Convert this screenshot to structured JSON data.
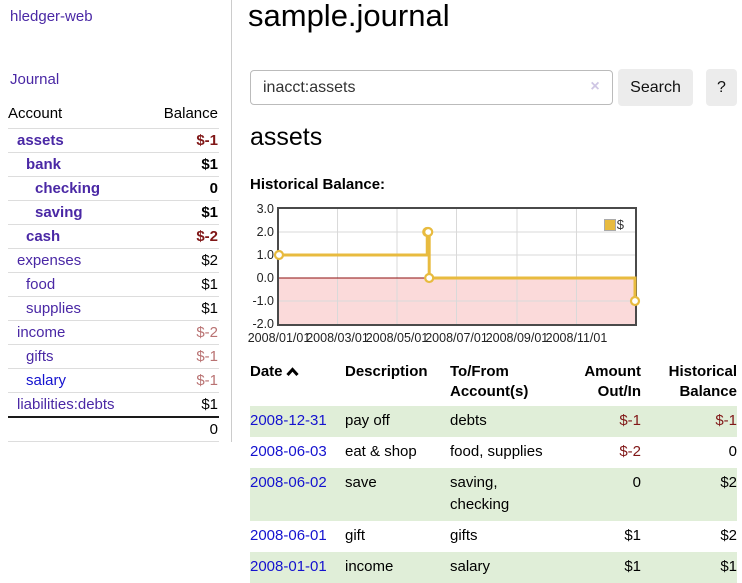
{
  "app": {
    "brand": "hledger-web"
  },
  "sidebar": {
    "journal_link": "Journal",
    "headers": {
      "account": "Account",
      "balance": "Balance"
    },
    "accounts": [
      {
        "name": "assets",
        "balance": "$-1",
        "depth": 1,
        "bold": true,
        "balance_style": "neg-dark",
        "link_style": "purple"
      },
      {
        "name": "bank",
        "balance": "$1",
        "depth": 2,
        "bold": true,
        "balance_style": "plain",
        "link_style": "purple"
      },
      {
        "name": "checking",
        "balance": "0",
        "depth": 3,
        "bold": true,
        "balance_style": "plain",
        "link_style": "purple"
      },
      {
        "name": "saving",
        "balance": "$1",
        "depth": 3,
        "bold": true,
        "balance_style": "plain",
        "link_style": "purple"
      },
      {
        "name": "cash",
        "balance": "$-2",
        "depth": 2,
        "bold": true,
        "balance_style": "neg-dark",
        "link_style": "purple"
      },
      {
        "name": "expenses",
        "balance": "$2",
        "depth": 1,
        "bold": false,
        "balance_style": "plain",
        "link_style": "purple"
      },
      {
        "name": "food",
        "balance": "$1",
        "depth": 2,
        "bold": false,
        "balance_style": "plain",
        "link_style": "purple"
      },
      {
        "name": "supplies",
        "balance": "$1",
        "depth": 2,
        "bold": false,
        "balance_style": "plain",
        "link_style": "purple"
      },
      {
        "name": "income",
        "balance": "$-2",
        "depth": 1,
        "bold": false,
        "balance_style": "neg-faded",
        "link_style": "purple"
      },
      {
        "name": "gifts",
        "balance": "$-1",
        "depth": 2,
        "bold": false,
        "balance_style": "neg-faded",
        "link_style": "purple"
      },
      {
        "name": "salary",
        "balance": "$-1",
        "depth": 2,
        "bold": false,
        "balance_style": "neg-faded",
        "link_style": "blue"
      },
      {
        "name": "liabilities:debts",
        "balance": "$1",
        "depth": 1,
        "bold": false,
        "balance_style": "plain",
        "link_style": "purple"
      }
    ],
    "total": "0"
  },
  "main": {
    "title": "sample.journal",
    "search": {
      "value": "inacct:assets",
      "clear_icon": "×",
      "button_label": "Search",
      "help_label": "?"
    },
    "account_heading": "assets",
    "chart_label": "Historical Balance:"
  },
  "chart_data": {
    "type": "line",
    "step": true,
    "title": "Historical Balance:",
    "series": [
      {
        "name": "$",
        "points": [
          {
            "x": "2008-01-01",
            "y": 1
          },
          {
            "x": "2008-06-01",
            "y": 2
          },
          {
            "x": "2008-06-02",
            "y": 2
          },
          {
            "x": "2008-06-03",
            "y": 0
          },
          {
            "x": "2008-12-31",
            "y": -1
          }
        ]
      }
    ],
    "xdomain": [
      "2008-01-01",
      "2008-12-31"
    ],
    "ylim": [
      -2,
      3
    ],
    "yticks": [
      "3.0",
      "2.0",
      "1.0",
      "0.0",
      "-1.0",
      "-2.0"
    ],
    "xticks": [
      {
        "label": "2008/01/01",
        "date": "2008-01-01"
      },
      {
        "label": "2008/03/01",
        "date": "2008-03-01"
      },
      {
        "label": "2008/05/01",
        "date": "2008-05-01"
      },
      {
        "label": "2008/07/01",
        "date": "2008-07-01"
      },
      {
        "label": "2008/09/01",
        "date": "2008-09-01"
      },
      {
        "label": "2008/11/01",
        "date": "2008-11-01"
      }
    ],
    "legend": {
      "label": "$",
      "position": "top-right"
    },
    "grid": true,
    "colors": {
      "line": "#e8bb3f",
      "marker_fill": "#ffffff",
      "negative_bg": "#fbdada",
      "zero_line": "#8c0d0d",
      "grid": "#d9d9d9",
      "border": "#4a4a4a"
    }
  },
  "register": {
    "headers": {
      "date": "Date",
      "description": "Description",
      "accounts": "To/From Account(s)",
      "amount": "Amount Out/In",
      "balance": "Historical Balance"
    },
    "rows": [
      {
        "date": "2008-12-31",
        "description": "pay off",
        "accounts": "debts",
        "amount": "$-1",
        "balance": "$-1",
        "amount_neg": true,
        "balance_neg": true
      },
      {
        "date": "2008-06-03",
        "description": "eat & shop",
        "accounts": "food, supplies",
        "amount": "$-2",
        "balance": "0",
        "amount_neg": true,
        "balance_neg": false
      },
      {
        "date": "2008-06-02",
        "description": "save",
        "accounts": "saving, checking",
        "amount": "0",
        "balance": "$2",
        "amount_neg": false,
        "balance_neg": false
      },
      {
        "date": "2008-06-01",
        "description": "gift",
        "accounts": "gifts",
        "amount": "$1",
        "balance": "$2",
        "amount_neg": false,
        "balance_neg": false
      },
      {
        "date": "2008-01-01",
        "description": "income",
        "accounts": "salary",
        "amount": "$1",
        "balance": "$1",
        "amount_neg": false,
        "balance_neg": false
      }
    ]
  }
}
